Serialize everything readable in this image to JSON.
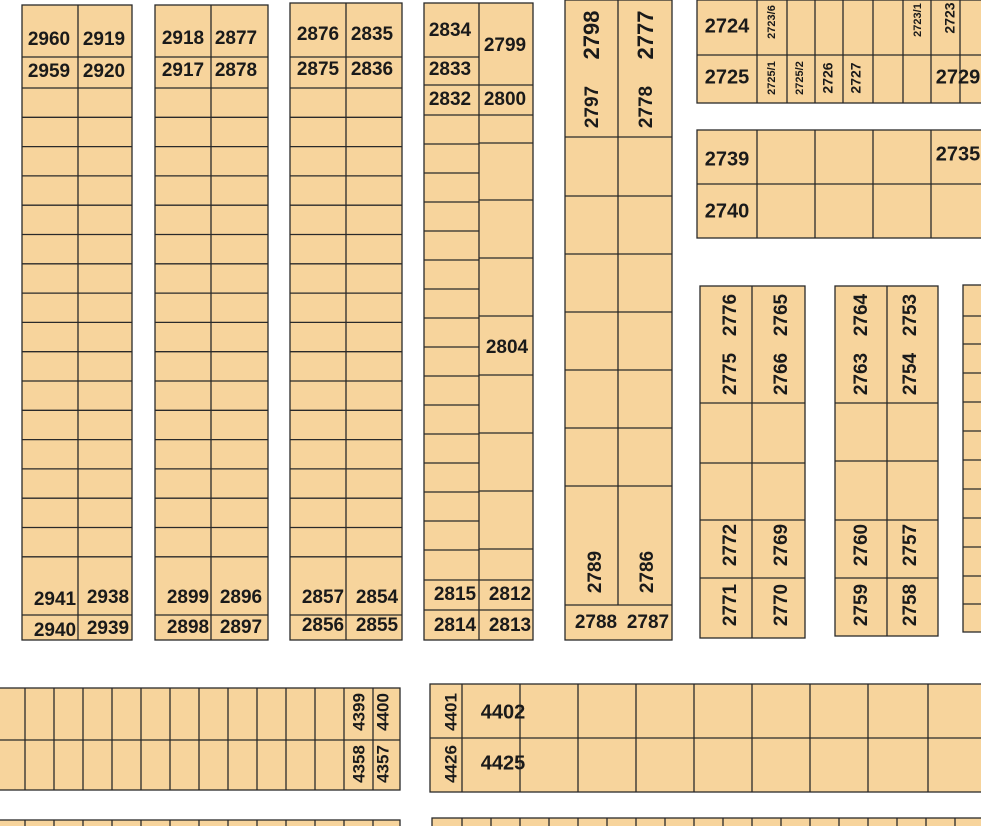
{
  "plots": [
    "2960",
    "2919",
    "2959",
    "2920",
    "2941",
    "2938",
    "2940",
    "2939",
    "2918",
    "2877",
    "2917",
    "2878",
    "2899",
    "2896",
    "2898",
    "2897",
    "2876",
    "2835",
    "2875",
    "2836",
    "2857",
    "2854",
    "2856",
    "2855",
    "2834",
    "2799",
    "2833",
    "2832",
    "2800",
    "2804",
    "2815",
    "2812",
    "2814",
    "2813",
    "2798",
    "2777",
    "2797",
    "2778",
    "2789",
    "2786",
    "2788",
    "2787",
    "2724",
    "2723/6",
    "2723/1",
    "2723",
    "2725",
    "2725/1",
    "2725/2",
    "2726",
    "2727",
    "2729",
    "2739",
    "2735",
    "2740",
    "2776",
    "2765",
    "2775",
    "2766",
    "2772",
    "2769",
    "2771",
    "2770",
    "2764",
    "2753",
    "2763",
    "2754",
    "2760",
    "2757",
    "2759",
    "2758",
    "4399",
    "4400",
    "4358",
    "4357",
    "4401",
    "4402",
    "4426",
    "4425"
  ]
}
